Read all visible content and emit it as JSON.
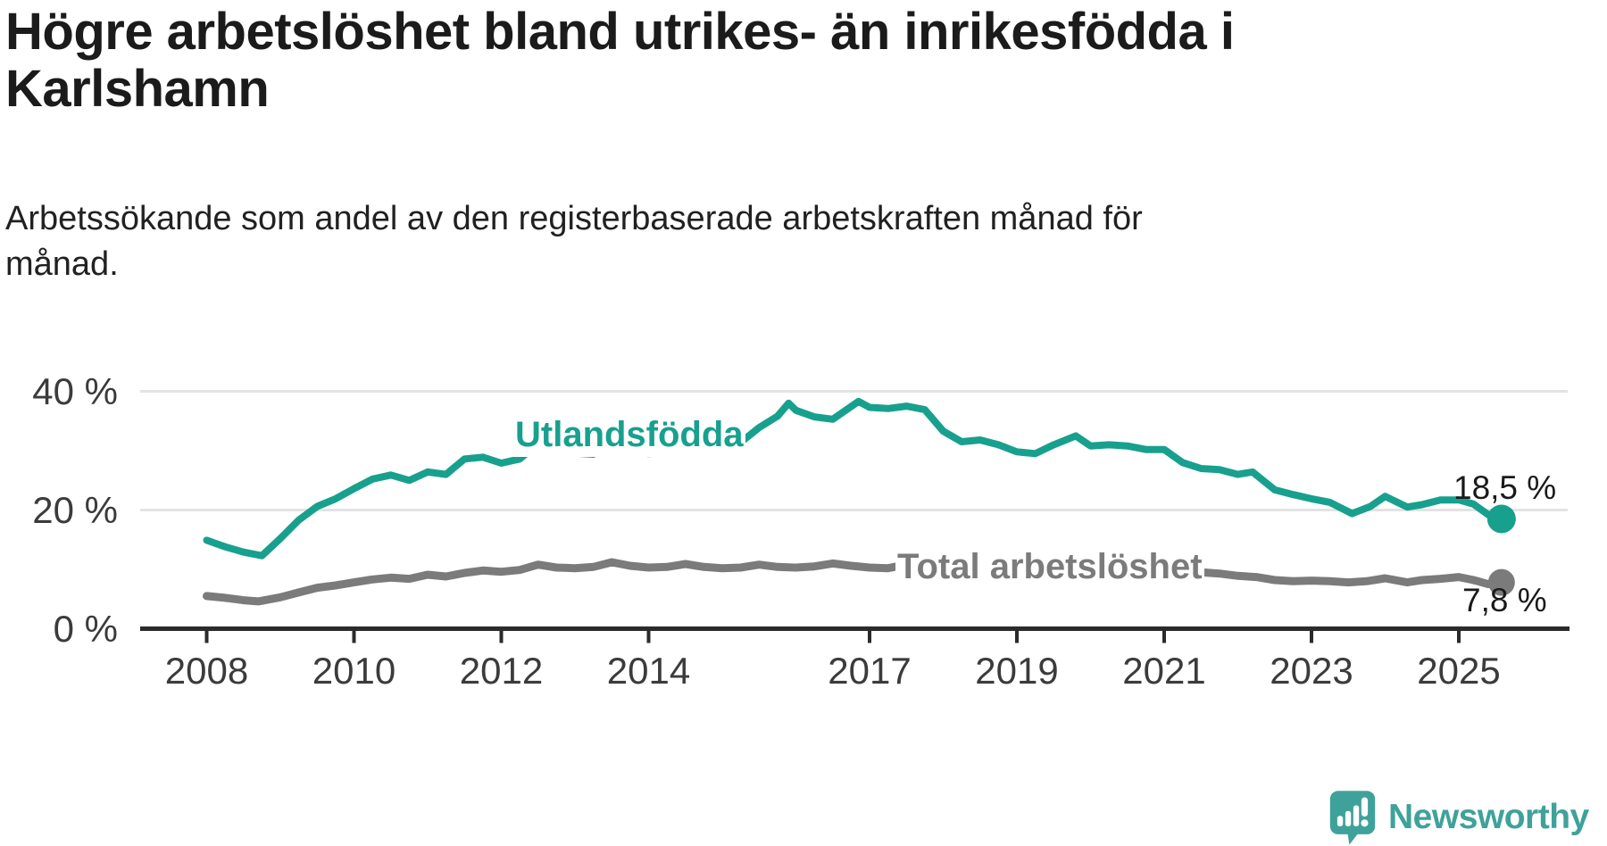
{
  "title": {
    "lines": [
      "Högre arbetslöshet bland utrikes- än inrikesfödda i",
      "Karlshamn"
    ],
    "full": "Högre arbetslöshet bland utrikes- än inrikesfödda i Karlshamn"
  },
  "subtitle": {
    "lines": [
      "Arbetssökande som andel av den registerbaserade arbetskraften månad för",
      "månad."
    ],
    "full": "Arbetssökande som andel av den registerbaserade arbetskraften månad för månad."
  },
  "branding": {
    "logo_text": "Newsworthy",
    "logo_color": "#3fa29a"
  },
  "chart_data": {
    "type": "line",
    "title": "Högre arbetslöshet bland utrikes- än inrikesfödda i Karlshamn",
    "subtitle": "Arbetssökande som andel av den registerbaserade arbetskraften månad för månad.",
    "x_unit": "decimal_year",
    "xlim": [
      2007.1,
      2026.4
    ],
    "ylim": [
      0,
      42
    ],
    "grid": "horizontal",
    "legend_position": "inline-labels",
    "style": {
      "grid_color": "#e3e3e3",
      "axis_color": "#2b2b2b",
      "tick_label_color": "#3b3b3b"
    },
    "x_axis": {
      "ticks": [
        2008,
        2010,
        2012,
        2014,
        2017,
        2019,
        2021,
        2023,
        2025
      ]
    },
    "y_axis": {
      "ticks": [
        {
          "value": 0,
          "label": "0 %"
        },
        {
          "value": 20,
          "label": "20 %"
        },
        {
          "value": 40,
          "label": "40 %"
        }
      ]
    },
    "series": [
      {
        "name": "Utlandsfödda",
        "color": "#18a08e",
        "end_label": "18,5 %",
        "end_value": 18.5,
        "points": [
          [
            2008.0,
            14.9
          ],
          [
            2008.25,
            13.8
          ],
          [
            2008.5,
            12.9
          ],
          [
            2008.75,
            12.3
          ],
          [
            2009.0,
            15.2
          ],
          [
            2009.25,
            18.3
          ],
          [
            2009.5,
            20.6
          ],
          [
            2009.75,
            21.9
          ],
          [
            2010.0,
            23.6
          ],
          [
            2010.25,
            25.2
          ],
          [
            2010.5,
            25.9
          ],
          [
            2010.75,
            25.0
          ],
          [
            2011.0,
            26.4
          ],
          [
            2011.25,
            26.0
          ],
          [
            2011.5,
            28.6
          ],
          [
            2011.75,
            28.9
          ],
          [
            2012.0,
            27.9
          ],
          [
            2012.25,
            28.6
          ],
          [
            2012.5,
            31.2
          ],
          [
            2012.75,
            30.3
          ],
          [
            2013.0,
            29.6
          ],
          [
            2013.25,
            29.4
          ],
          [
            2013.5,
            30.9
          ],
          [
            2013.75,
            29.9
          ],
          [
            2014.0,
            29.5
          ],
          [
            2014.25,
            29.7
          ],
          [
            2014.5,
            31.1
          ],
          [
            2014.75,
            30.6
          ],
          [
            2015.0,
            30.7
          ],
          [
            2015.25,
            31.4
          ],
          [
            2015.5,
            33.9
          ],
          [
            2015.75,
            35.8
          ],
          [
            2015.9,
            38.0
          ],
          [
            2016.0,
            36.8
          ],
          [
            2016.25,
            35.7
          ],
          [
            2016.5,
            35.3
          ],
          [
            2016.85,
            38.3
          ],
          [
            2017.0,
            37.3
          ],
          [
            2017.25,
            37.1
          ],
          [
            2017.5,
            37.5
          ],
          [
            2017.75,
            36.9
          ],
          [
            2018.0,
            33.3
          ],
          [
            2018.25,
            31.5
          ],
          [
            2018.5,
            31.8
          ],
          [
            2018.75,
            31.0
          ],
          [
            2019.0,
            29.8
          ],
          [
            2019.25,
            29.5
          ],
          [
            2019.5,
            31.0
          ],
          [
            2019.8,
            32.5
          ],
          [
            2020.0,
            30.8
          ],
          [
            2020.25,
            31.0
          ],
          [
            2020.5,
            30.8
          ],
          [
            2020.75,
            30.2
          ],
          [
            2021.0,
            30.2
          ],
          [
            2021.25,
            28.0
          ],
          [
            2021.5,
            27.0
          ],
          [
            2021.75,
            26.8
          ],
          [
            2022.0,
            26.0
          ],
          [
            2022.2,
            26.4
          ],
          [
            2022.5,
            23.4
          ],
          [
            2022.75,
            22.6
          ],
          [
            2023.0,
            21.9
          ],
          [
            2023.25,
            21.3
          ],
          [
            2023.55,
            19.4
          ],
          [
            2023.8,
            20.6
          ],
          [
            2024.0,
            22.3
          ],
          [
            2024.3,
            20.5
          ],
          [
            2024.5,
            20.9
          ],
          [
            2024.75,
            21.7
          ],
          [
            2025.0,
            21.7
          ],
          [
            2025.2,
            21.0
          ],
          [
            2025.4,
            19.2
          ],
          [
            2025.58,
            18.5
          ]
        ]
      },
      {
        "name": "Total arbetslöshet",
        "color": "#7b7b7b",
        "end_label": "7,8 %",
        "end_value": 7.8,
        "points": [
          [
            2008.0,
            5.5
          ],
          [
            2008.25,
            5.2
          ],
          [
            2008.5,
            4.8
          ],
          [
            2008.7,
            4.6
          ],
          [
            2009.0,
            5.3
          ],
          [
            2009.25,
            6.1
          ],
          [
            2009.5,
            6.9
          ],
          [
            2009.75,
            7.3
          ],
          [
            2010.0,
            7.8
          ],
          [
            2010.25,
            8.3
          ],
          [
            2010.5,
            8.6
          ],
          [
            2010.75,
            8.4
          ],
          [
            2011.0,
            9.1
          ],
          [
            2011.25,
            8.8
          ],
          [
            2011.5,
            9.4
          ],
          [
            2011.75,
            9.8
          ],
          [
            2012.0,
            9.6
          ],
          [
            2012.25,
            9.9
          ],
          [
            2012.5,
            10.8
          ],
          [
            2012.75,
            10.3
          ],
          [
            2013.0,
            10.2
          ],
          [
            2013.25,
            10.4
          ],
          [
            2013.5,
            11.2
          ],
          [
            2013.75,
            10.6
          ],
          [
            2014.0,
            10.3
          ],
          [
            2014.25,
            10.4
          ],
          [
            2014.5,
            10.9
          ],
          [
            2014.75,
            10.4
          ],
          [
            2015.0,
            10.2
          ],
          [
            2015.25,
            10.3
          ],
          [
            2015.5,
            10.8
          ],
          [
            2015.75,
            10.4
          ],
          [
            2016.0,
            10.3
          ],
          [
            2016.25,
            10.5
          ],
          [
            2016.5,
            11.0
          ],
          [
            2016.75,
            10.6
          ],
          [
            2017.0,
            10.3
          ],
          [
            2017.25,
            10.2
          ],
          [
            2017.5,
            10.8
          ],
          [
            2017.75,
            10.4
          ],
          [
            2018.0,
            10.0
          ],
          [
            2018.25,
            9.6
          ],
          [
            2018.5,
            10.2
          ],
          [
            2018.75,
            9.8
          ],
          [
            2019.0,
            9.5
          ],
          [
            2019.25,
            9.4
          ],
          [
            2019.5,
            10.0
          ],
          [
            2019.75,
            10.5
          ],
          [
            2020.0,
            10.0
          ],
          [
            2020.25,
            10.3
          ],
          [
            2020.5,
            10.8
          ],
          [
            2020.75,
            10.4
          ],
          [
            2021.0,
            10.2
          ],
          [
            2021.25,
            9.7
          ],
          [
            2021.5,
            9.5
          ],
          [
            2021.75,
            9.3
          ],
          [
            2022.0,
            8.9
          ],
          [
            2022.25,
            8.7
          ],
          [
            2022.5,
            8.2
          ],
          [
            2022.75,
            8.0
          ],
          [
            2023.0,
            8.1
          ],
          [
            2023.25,
            8.0
          ],
          [
            2023.5,
            7.8
          ],
          [
            2023.75,
            8.0
          ],
          [
            2024.0,
            8.5
          ],
          [
            2024.3,
            7.8
          ],
          [
            2024.5,
            8.2
          ],
          [
            2024.75,
            8.4
          ],
          [
            2025.0,
            8.7
          ],
          [
            2025.2,
            8.2
          ],
          [
            2025.4,
            7.5
          ],
          [
            2025.58,
            7.8
          ]
        ]
      }
    ]
  }
}
